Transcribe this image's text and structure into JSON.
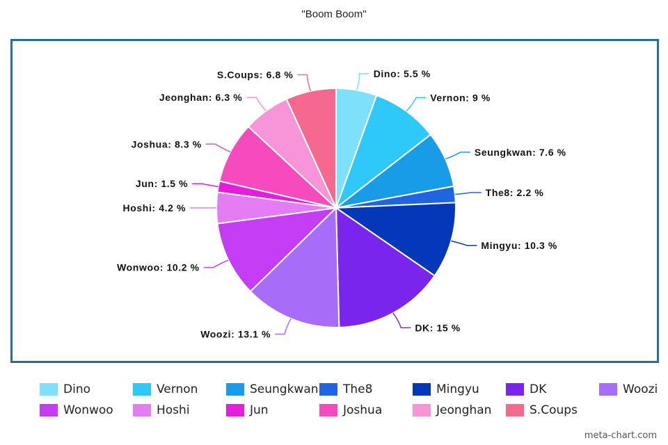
{
  "chart_data": {
    "type": "pie",
    "title": "\"Boom Boom\"",
    "label_unit": "%",
    "slices": [
      {
        "name": "Dino",
        "value": 5.5,
        "color": "#7fe0fb"
      },
      {
        "name": "Vernon",
        "value": 9,
        "color": "#2ec9f8"
      },
      {
        "name": "Seungkwan",
        "value": 7.6,
        "color": "#189ce8"
      },
      {
        "name": "The8",
        "value": 2.2,
        "color": "#2065e0"
      },
      {
        "name": "Mingyu",
        "value": 10.3,
        "color": "#0538b8"
      },
      {
        "name": "DK",
        "value": 15,
        "color": "#7a26ee"
      },
      {
        "name": "Woozi",
        "value": 13.1,
        "color": "#a76cf8"
      },
      {
        "name": "Wonwoo",
        "value": 10.2,
        "color": "#c43cf4"
      },
      {
        "name": "Hoshi",
        "value": 4.2,
        "color": "#e47cf4"
      },
      {
        "name": "Jun",
        "value": 1.5,
        "color": "#e71ddd"
      },
      {
        "name": "Joshua",
        "value": 8.3,
        "color": "#f54bbd"
      },
      {
        "name": "Jeonghan",
        "value": 6.3,
        "color": "#f894d8"
      },
      {
        "name": "S.Coups",
        "value": 6.8,
        "color": "#f6698f"
      }
    ],
    "legend_position": "bottom"
  },
  "watermark": "meta-chart.com"
}
